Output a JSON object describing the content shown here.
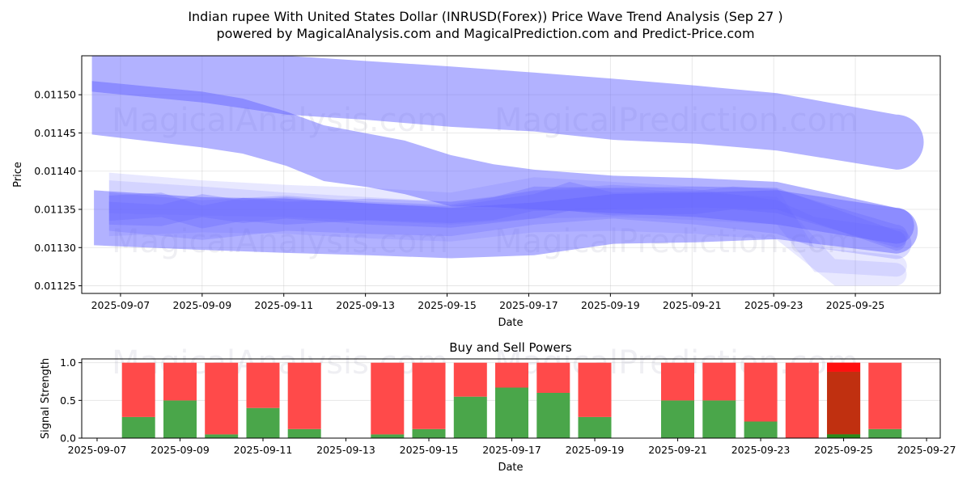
{
  "header": {
    "title": "Indian rupee With United States Dollar (INRUSD(Forex)) Price Wave Trend Analysis (Sep 27 )",
    "subtitle": "powered by MagicalAnalysis.com and MagicalPrediction.com and Predict-Price.com"
  },
  "watermarks": [
    "MagicalAnalysis.com",
    "MagicalPrediction.com"
  ],
  "colors": {
    "band": "#6666ff",
    "buy": "#4aa64a",
    "sell": "#ff4a4a",
    "overlay_dark": "#c03010",
    "overlay_top": "#ff1010"
  },
  "chart_data": [
    {
      "type": "area",
      "title": "",
      "xlabel": "Date",
      "ylabel": "Price",
      "x_unit": "day of September 2025",
      "xlim": [
        6.05,
        27.08
      ],
      "ylim": [
        0.01124,
        0.011551
      ],
      "grid": true,
      "x_ticks": [
        {
          "value": 7,
          "label": "2025-09-07"
        },
        {
          "value": 9,
          "label": "2025-09-09"
        },
        {
          "value": 11,
          "label": "2025-09-11"
        },
        {
          "value": 13,
          "label": "2025-09-13"
        },
        {
          "value": 15,
          "label": "2025-09-15"
        },
        {
          "value": 17,
          "label": "2025-09-17"
        },
        {
          "value": 19,
          "label": "2025-09-19"
        },
        {
          "value": 21,
          "label": "2025-09-21"
        },
        {
          "value": 23,
          "label": "2025-09-23"
        },
        {
          "value": 25,
          "label": "2025-09-25"
        }
      ],
      "y_ticks": [
        {
          "value": 0.01125,
          "label": "0.01125"
        },
        {
          "value": 0.0113,
          "label": "0.01130"
        },
        {
          "value": 0.01135,
          "label": "0.01135"
        },
        {
          "value": 0.0114,
          "label": "0.01140"
        },
        {
          "value": 0.01145,
          "label": "0.01145"
        },
        {
          "value": 0.0115,
          "label": "0.01150"
        }
      ],
      "series": [
        {
          "name": "upper-wave",
          "opacity": 0.5,
          "points": [
            [
              6.3,
              0.011504,
              0.011575
            ],
            [
              9.0,
              0.01149,
              0.011562
            ],
            [
              11.06,
              0.011474,
              0.011551
            ],
            [
              13.07,
              0.011467,
              0.011544
            ],
            [
              15.09,
              0.011458,
              0.011537
            ],
            [
              17.13,
              0.011452,
              0.011529
            ],
            [
              19.07,
              0.011441,
              0.011521
            ],
            [
              21.1,
              0.011436,
              0.011512
            ],
            [
              23.08,
              0.011427,
              0.011502
            ],
            [
              26.0,
              0.011402,
              0.011474
            ]
          ],
          "cap": "round"
        },
        {
          "name": "descending-wave",
          "opacity": 0.5,
          "points": [
            [
              6.3,
              0.011448,
              0.011518
            ],
            [
              9.0,
              0.011431,
              0.011504
            ],
            [
              9.99,
              0.011423,
              0.011495
            ],
            [
              11.06,
              0.011407,
              0.011478
            ],
            [
              11.98,
              0.011387,
              0.01146
            ],
            [
              13.07,
              0.011379,
              0.011449
            ],
            [
              13.96,
              0.01137,
              0.01144
            ],
            [
              15.09,
              0.011354,
              0.011421
            ],
            [
              16.14,
              0.011353,
              0.011409
            ],
            [
              17.13,
              0.01135,
              0.011402
            ],
            [
              19.07,
              0.011345,
              0.011394
            ],
            [
              21.1,
              0.01134,
              0.011391
            ],
            [
              23.08,
              0.01133,
              0.011386
            ],
            [
              26.0,
              0.011305,
              0.011352
            ]
          ],
          "cap": "round"
        },
        {
          "name": "lower-wide-wave",
          "opacity": 0.5,
          "points": [
            [
              6.35,
              0.011303,
              0.011375
            ],
            [
              9.0,
              0.011297,
              0.011366
            ],
            [
              11.06,
              0.011293,
              0.011364
            ],
            [
              13.07,
              0.01129,
              0.011358
            ],
            [
              15.09,
              0.011286,
              0.011352
            ],
            [
              17.13,
              0.01129,
              0.011359
            ],
            [
              19.07,
              0.011305,
              0.01137
            ],
            [
              21.1,
              0.011307,
              0.011372
            ],
            [
              23.08,
              0.011311,
              0.011375
            ],
            [
              26.0,
              0.011292,
              0.011352
            ]
          ],
          "cap": "round"
        },
        {
          "name": "core-wave-1",
          "opacity": 0.3,
          "points": [
            [
              6.72,
              0.01133,
              0.01136
            ],
            [
              8.0,
              0.011328,
              0.011356
            ],
            [
              9.0,
              0.01134,
              0.01137
            ],
            [
              10.0,
              0.011332,
              0.011362
            ],
            [
              11.06,
              0.011338,
              0.011366
            ],
            [
              13.07,
              0.01133,
              0.011358
            ],
            [
              15.09,
              0.011326,
              0.011354
            ],
            [
              17.13,
              0.011338,
              0.01137
            ],
            [
              18.0,
              0.011348,
              0.011386
            ],
            [
              19.07,
              0.011342,
              0.011372
            ],
            [
              21.1,
              0.011344,
              0.011374
            ],
            [
              22.0,
              0.01135,
              0.01138
            ],
            [
              23.08,
              0.011345,
              0.011376
            ],
            [
              26.0,
              0.0113,
              0.01133
            ]
          ],
          "cap": "round"
        },
        {
          "name": "core-wave-2",
          "opacity": 0.3,
          "points": [
            [
              6.72,
              0.011335,
              0.011368
            ],
            [
              8.0,
              0.01134,
              0.011372
            ],
            [
              9.0,
              0.011325,
              0.011355
            ],
            [
              10.0,
              0.011335,
              0.011365
            ],
            [
              11.06,
              0.01133,
              0.01136
            ],
            [
              13.07,
              0.011336,
              0.011364
            ],
            [
              15.09,
              0.011332,
              0.01136
            ],
            [
              16.14,
              0.011336,
              0.011366
            ],
            [
              17.13,
              0.011348,
              0.01138
            ],
            [
              19.07,
              0.01135,
              0.011378
            ],
            [
              21.1,
              0.011352,
              0.01138
            ],
            [
              23.08,
              0.01135,
              0.011378
            ],
            [
              26.0,
              0.011296,
              0.011322
            ]
          ],
          "cap": "round"
        },
        {
          "name": "core-wave-3",
          "opacity": 0.25,
          "points": [
            [
              6.72,
              0.011322,
              0.011372
            ],
            [
              9.0,
              0.01131,
              0.011362
            ],
            [
              11.06,
              0.011322,
              0.011368
            ],
            [
              13.07,
              0.011318,
              0.01136
            ],
            [
              15.09,
              0.011315,
              0.011356
            ],
            [
              17.13,
              0.01133,
              0.011375
            ],
            [
              19.07,
              0.011338,
              0.011382
            ],
            [
              21.1,
              0.01133,
              0.011376
            ],
            [
              23.08,
              0.011318,
              0.011362
            ],
            [
              24.0,
              0.0113,
              0.01134
            ],
            [
              26.0,
              0.011285,
              0.011325
            ]
          ],
          "cap": "round"
        },
        {
          "name": "faint-wave-1",
          "opacity": 0.15,
          "points": [
            [
              6.72,
              0.011345,
              0.011398
            ],
            [
              9.0,
              0.011342,
              0.011388
            ],
            [
              11.06,
              0.01134,
              0.011382
            ],
            [
              13.07,
              0.011335,
              0.011378
            ],
            [
              15.09,
              0.01133,
              0.011372
            ],
            [
              17.13,
              0.011338,
              0.011392
            ],
            [
              19.07,
              0.01134,
              0.011386
            ],
            [
              21.1,
              0.011336,
              0.01138
            ],
            [
              23.08,
              0.01133,
              0.011378
            ],
            [
              24.0,
              0.011268,
              0.0113
            ],
            [
              26.0,
              0.011262,
              0.01129
            ]
          ],
          "cap": "round"
        },
        {
          "name": "faint-wave-2",
          "opacity": 0.15,
          "points": [
            [
              6.72,
              0.011315,
              0.011388
            ],
            [
              9.0,
              0.01132,
              0.01138
            ],
            [
              11.06,
              0.011318,
              0.011372
            ],
            [
              13.07,
              0.011312,
              0.011366
            ],
            [
              15.09,
              0.011308,
              0.01136
            ],
            [
              17.13,
              0.01132,
              0.011374
            ],
            [
              19.07,
              0.011322,
              0.011378
            ],
            [
              21.1,
              0.011318,
              0.011372
            ],
            [
              23.08,
              0.01131,
              0.011366
            ],
            [
              24.5,
              0.01125,
              0.011285
            ],
            [
              26.0,
              0.01125,
              0.01128
            ]
          ],
          "cap": "round"
        }
      ],
      "watermark_rows": 2
    },
    {
      "type": "bar",
      "title": "Buy and Sell Powers",
      "xlabel": "Date",
      "ylabel": "Signal Strength",
      "x_unit": "day of September 2025",
      "xlim": [
        6.63,
        27.33
      ],
      "ylim": [
        0,
        1.05
      ],
      "grid": true,
      "x_ticks": [
        {
          "value": 7,
          "label": "2025-09-07"
        },
        {
          "value": 9,
          "label": "2025-09-09"
        },
        {
          "value": 11,
          "label": "2025-09-11"
        },
        {
          "value": 13,
          "label": "2025-09-13"
        },
        {
          "value": 15,
          "label": "2025-09-15"
        },
        {
          "value": 17,
          "label": "2025-09-17"
        },
        {
          "value": 19,
          "label": "2025-09-19"
        },
        {
          "value": 21,
          "label": "2025-09-21"
        },
        {
          "value": 23,
          "label": "2025-09-23"
        },
        {
          "value": 25,
          "label": "2025-09-25"
        },
        {
          "value": 27,
          "label": "2025-09-27"
        }
      ],
      "y_ticks": [
        {
          "value": 0.0,
          "label": "0.0"
        },
        {
          "value": 0.5,
          "label": "0.5"
        },
        {
          "value": 1.0,
          "label": "1.0"
        }
      ],
      "categories": [
        "2025-09-08",
        "2025-09-09",
        "2025-09-10",
        "2025-09-11",
        "2025-09-12",
        "2025-09-14",
        "2025-09-15",
        "2025-09-16",
        "2025-09-17",
        "2025-09-18",
        "2025-09-19",
        "2025-09-21",
        "2025-09-22",
        "2025-09-23",
        "2025-09-24",
        "2025-09-25",
        "2025-09-26"
      ],
      "days": [
        8,
        9,
        10,
        11,
        12,
        14,
        15,
        16,
        17,
        18,
        19,
        21,
        22,
        23,
        24,
        25,
        26
      ],
      "series": [
        {
          "name": "Buy",
          "values": [
            0.28,
            0.5,
            0.05,
            0.4,
            0.12,
            0.05,
            0.12,
            0.55,
            0.67,
            0.6,
            0.28,
            0.5,
            0.5,
            0.22,
            0.0,
            0.05,
            0.12
          ]
        },
        {
          "name": "Sell",
          "values": [
            0.72,
            0.5,
            0.95,
            0.6,
            0.88,
            0.95,
            0.88,
            0.45,
            0.33,
            0.4,
            0.72,
            0.5,
            0.5,
            0.78,
            1.0,
            0.95,
            0.88
          ]
        }
      ],
      "overlay": {
        "day": 25,
        "value": 0.88,
        "label": "dark overlay"
      }
    }
  ]
}
